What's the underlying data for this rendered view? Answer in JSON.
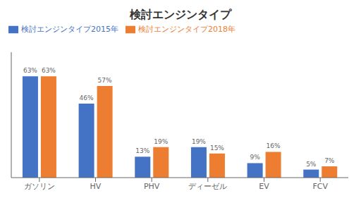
{
  "chart_data": {
    "type": "bar",
    "title": "検討エンジンタイプ",
    "categories": [
      "ガソリン",
      "HV",
      "PHV",
      "ディーゼル",
      "EV",
      "FCV"
    ],
    "series": [
      {
        "name": "検討エンジンタイプ2015年",
        "color": "#4472C4",
        "values": [
          63,
          46,
          13,
          19,
          9,
          5
        ],
        "value_labels": [
          "63%",
          "46%",
          "13%",
          "19%",
          "9%",
          "5%"
        ]
      },
      {
        "name": "検討エンジンタイプ2018年",
        "color": "#ED7D31",
        "values": [
          63,
          57,
          19,
          15,
          16,
          7
        ],
        "value_labels": [
          "63%",
          "57%",
          "19%",
          "15%",
          "16%",
          "7%"
        ]
      }
    ],
    "ylim": [
      0,
      78
    ],
    "tick_labels": "x",
    "data_labels": true
  }
}
